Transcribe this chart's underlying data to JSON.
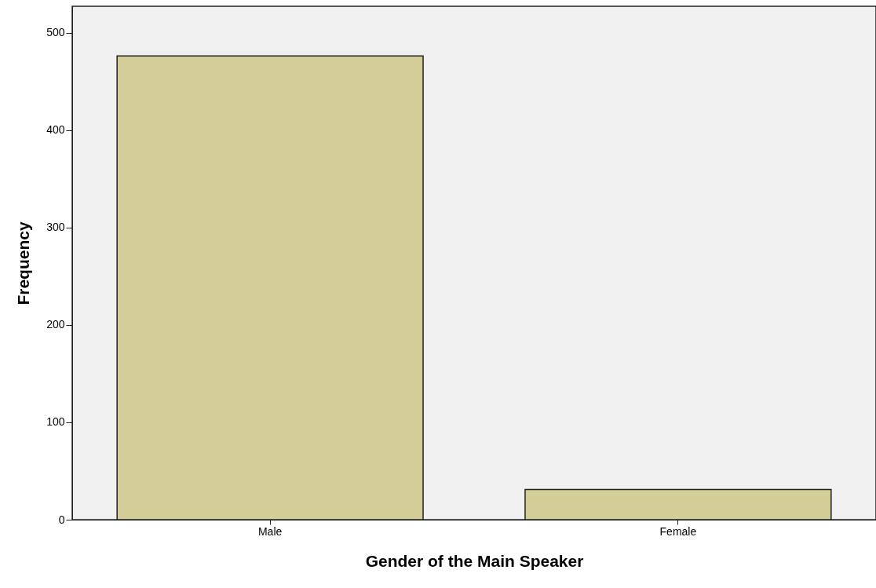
{
  "chart_data": {
    "type": "bar",
    "xlabel": "Gender of the Main Speaker",
    "ylabel": "Frequency",
    "categories": [
      "Male",
      "Female"
    ],
    "values": [
      476,
      31
    ],
    "color": "#d3ce97",
    "ylim": [
      0,
      527
    ],
    "yticks": [
      0,
      100,
      200,
      300,
      400,
      500
    ],
    "grid": false
  }
}
